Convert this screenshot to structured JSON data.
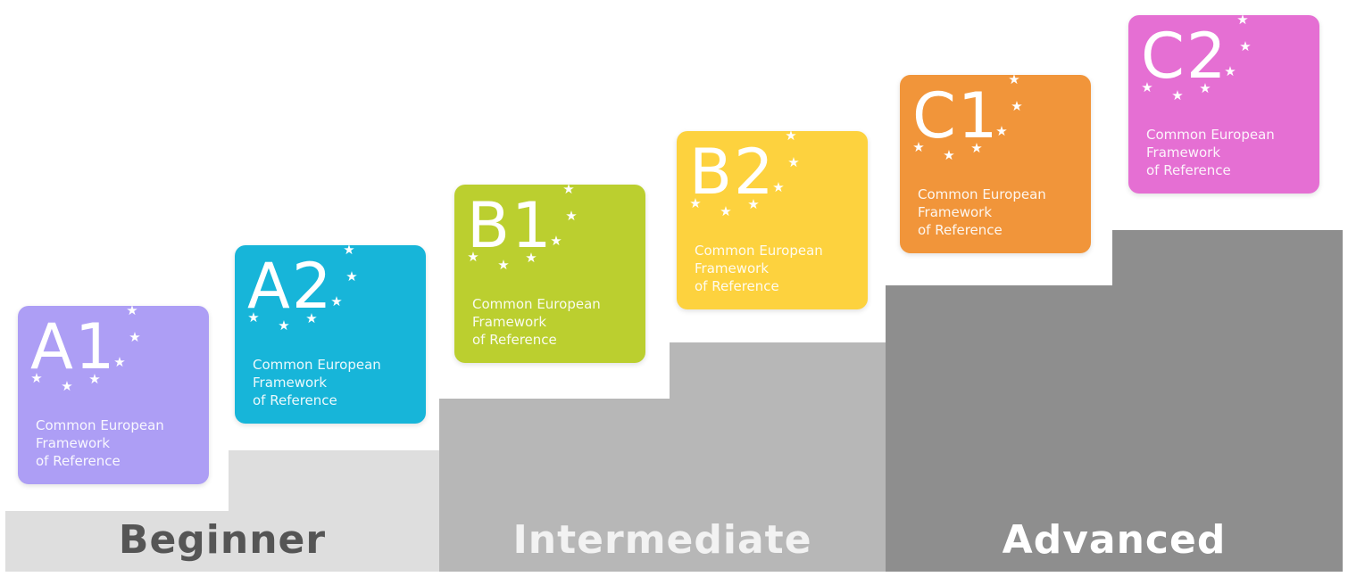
{
  "bands": [
    {
      "name": "Beginner",
      "color": "#dedede",
      "text_color": "#555555"
    },
    {
      "name": "Intermediate",
      "color": "#b7b7b7",
      "text_color": "#f2f2f2"
    },
    {
      "name": "Advanced",
      "color": "#8e8e8e",
      "text_color": "#ffffff"
    }
  ],
  "levels": [
    {
      "code": "A1",
      "color": "#ad9ef5",
      "caption": [
        "Common European",
        "Framework",
        "of Reference"
      ]
    },
    {
      "code": "A2",
      "color": "#17b5d9",
      "caption": [
        "Common European",
        "Framework",
        "of Reference"
      ]
    },
    {
      "code": "B1",
      "color": "#bbcf2f",
      "caption": [
        "Common European",
        "Framework",
        "of Reference"
      ]
    },
    {
      "code": "B2",
      "color": "#fdd23e",
      "caption": [
        "Common European",
        "Framework",
        "of Reference"
      ]
    },
    {
      "code": "C1",
      "color": "#f1953a",
      "caption": [
        "Common European",
        "Framework",
        "of Reference"
      ]
    },
    {
      "code": "C2",
      "color": "#e56fd3",
      "caption": [
        "Common European",
        "Framework",
        "of Reference"
      ]
    }
  ],
  "star_icon": "star-icon"
}
